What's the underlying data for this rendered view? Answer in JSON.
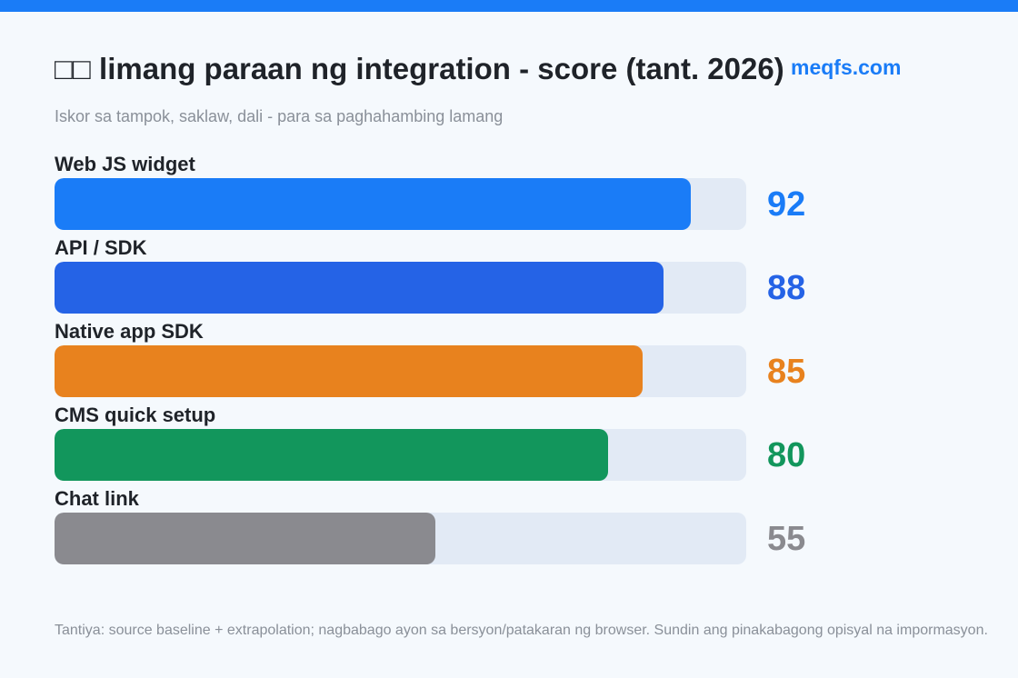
{
  "title": "□□ limang paraan ng integration - score (tant. 2026)",
  "watermark": "meqfs.com",
  "subtitle": "Iskor sa tampok, saklaw, dali - para sa paghahambing lamang",
  "footnote": "Tantiya: source baseline + extrapolation; nagbabago ayon sa bersyon/patakaran ng browser. Sundin ang pinakabagong opisyal na impormasyon.",
  "chart_data": {
    "type": "bar",
    "orientation": "horizontal",
    "title": "□□ limang paraan ng integration - score (tant. 2026)",
    "subtitle": "Iskor sa tampok, saklaw, dali - para sa paghahambing lamang",
    "categories": [
      "Web JS widget",
      "API / SDK",
      "Native app SDK",
      "CMS quick setup",
      "Chat link"
    ],
    "values": [
      92,
      88,
      85,
      80,
      55
    ],
    "colors": [
      "#1a7cf7",
      "#2563e6",
      "#e8821e",
      "#12965c",
      "#8a8a8f"
    ],
    "xlim": [
      0,
      100
    ],
    "grid": false,
    "legend": "none"
  }
}
